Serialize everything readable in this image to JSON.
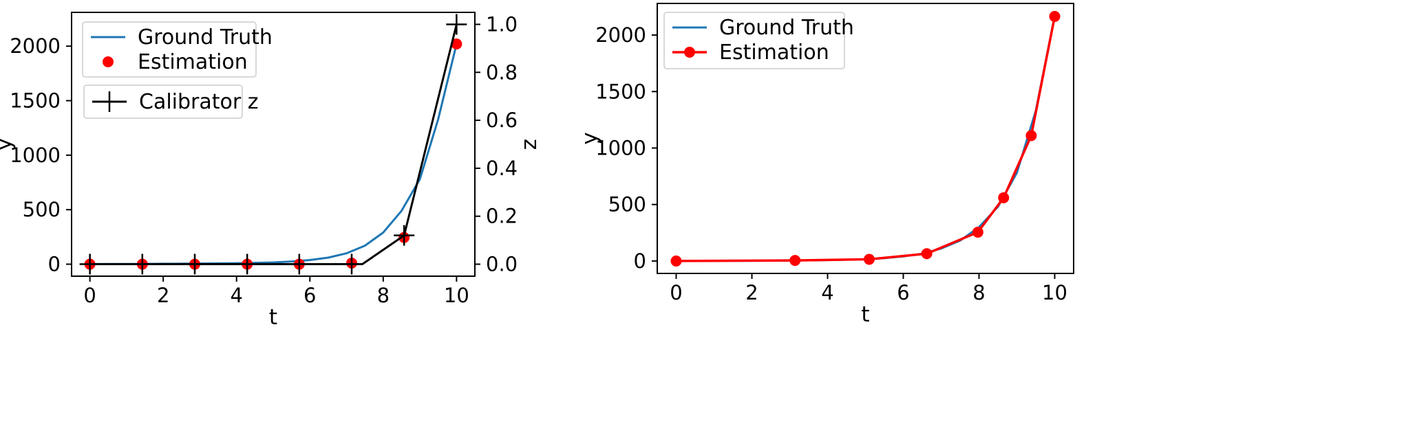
{
  "chart_data": [
    {
      "type": "line",
      "xlabel": "t",
      "ylabel": "y",
      "y2label": "z",
      "xlim": [
        -0.5,
        10.5
      ],
      "ylim": [
        -110,
        2310
      ],
      "y2lim": [
        -0.05,
        1.05
      ],
      "xticks": [
        0,
        2,
        4,
        6,
        8,
        10
      ],
      "yticks": [
        0,
        500,
        1000,
        1500,
        2000
      ],
      "y2ticks": [
        0.0,
        0.2,
        0.4,
        0.6,
        0.8,
        1.0
      ],
      "y2tick_labels": [
        "0.0",
        "0.2",
        "0.4",
        "0.6",
        "0.8",
        "1.0"
      ],
      "grid": false,
      "legend_placement": "top-left",
      "series": [
        {
          "name": "Ground Truth",
          "style": "line",
          "color": "#1f77b4",
          "x": [
            0,
            0.5,
            1,
            1.5,
            2,
            2.5,
            3,
            3.5,
            4,
            4.5,
            5,
            5.5,
            6,
            6.5,
            7,
            7.5,
            8,
            8.5,
            9,
            9.5,
            10
          ],
          "y": [
            1,
            1.5,
            2,
            3,
            4,
            5,
            6,
            7.5,
            9,
            12,
            16,
            25,
            38,
            60,
            100,
            170,
            290,
            490,
            780,
            1330,
            2020
          ]
        },
        {
          "name": "Estimation",
          "style": "marker",
          "color": "#ff0000",
          "x": [
            0,
            1.43,
            2.86,
            4.29,
            5.71,
            7.14,
            8.57,
            10
          ],
          "y": [
            0,
            0,
            0,
            0,
            0,
            10,
            245,
            2020
          ]
        }
      ],
      "secondary_series": [
        {
          "name": "Calibrator z",
          "style": "line+plus",
          "color": "#000000",
          "x": [
            0,
            1.43,
            2.86,
            4.29,
            5.71,
            7.14,
            7.43,
            8.57,
            10
          ],
          "y": [
            0,
            0,
            0,
            0,
            0,
            0,
            0.0,
            0.12,
            1.0
          ]
        }
      ]
    },
    {
      "type": "line",
      "xlabel": "t",
      "ylabel": "y",
      "xlim": [
        -0.5,
        10.5
      ],
      "ylim": [
        -110,
        2280
      ],
      "xticks": [
        0,
        2,
        4,
        6,
        8,
        10
      ],
      "yticks": [
        0,
        500,
        1000,
        1500,
        2000
      ],
      "grid": false,
      "legend_placement": "top-left",
      "series": [
        {
          "name": "Ground Truth",
          "style": "line",
          "color": "#1f77b4",
          "x": [
            0,
            1,
            2,
            3,
            4,
            5,
            5.5,
            6,
            6.5,
            7,
            7.5,
            8,
            8.5,
            9,
            9.5,
            10
          ],
          "y": [
            0,
            1,
            2,
            4,
            8,
            15,
            25,
            40,
            65,
            110,
            180,
            300,
            480,
            780,
            1330,
            2170
          ]
        },
        {
          "name": "Estimation",
          "style": "line+marker",
          "color": "#ff0000",
          "x": [
            0,
            3.14,
            5.1,
            6.62,
            7.97,
            8.65,
            9.38,
            10
          ],
          "y": [
            0,
            5,
            15,
            65,
            255,
            560,
            1110,
            2165
          ]
        }
      ]
    }
  ]
}
